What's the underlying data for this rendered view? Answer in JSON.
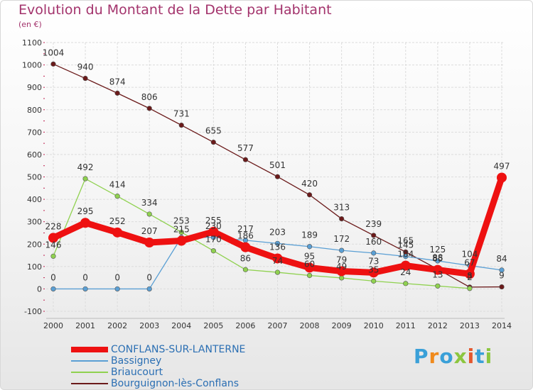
{
  "header": {
    "title": "Evolution du Montant de la Dette par Habitant",
    "unit": "(en €)"
  },
  "brand": {
    "text": "Proxiti",
    "colors": [
      "#3aa0d8",
      "#f08a1c",
      "#3aa0d8",
      "#8cc63f",
      "#e4572e",
      "#3aa0d8",
      "#8cc63f"
    ]
  },
  "chart_data": {
    "type": "line",
    "x": [
      "2000",
      "2001",
      "2002",
      "2003",
      "2004",
      "2005",
      "2006",
      "2007",
      "2008",
      "2009",
      "2010",
      "2011",
      "2012",
      "2013",
      "2014"
    ],
    "ylim": [
      -100,
      1100
    ],
    "yticks": [
      -100,
      0,
      100,
      200,
      300,
      400,
      500,
      600,
      700,
      800,
      900,
      1000,
      1100
    ],
    "grid": true,
    "legend_position": "bottom-left",
    "series": [
      {
        "name": "CONFLANS-SUR-LANTERNE",
        "color": "#ee1111",
        "values": [
          228,
          295,
          252,
          207,
          215,
          255,
          186,
          136,
          95,
          79,
          73,
          104,
          85,
          67,
          497
        ],
        "labels": [
          "228",
          "295",
          "252",
          "207",
          "215",
          "255",
          "186",
          "136",
          "95",
          "79",
          "73",
          "104",
          "85",
          "67",
          "497"
        ]
      },
      {
        "name": "Bassigney",
        "color": "#5a9fd4",
        "values": [
          0,
          0,
          0,
          0,
          230,
          230,
          217,
          203,
          189,
          172,
          160,
          145,
          125,
          104,
          84
        ],
        "labels": [
          "0",
          "0",
          "0",
          "0",
          "",
          "230",
          "217",
          "203",
          "189",
          "172",
          "160",
          "145",
          "125",
          "104",
          "84"
        ]
      },
      {
        "name": "Briaucourt",
        "color": "#8fd14f",
        "values": [
          146,
          492,
          414,
          334,
          253,
          170,
          86,
          74,
          60,
          49,
          35,
          24,
          13,
          2,
          null
        ],
        "labels": [
          "146",
          "492",
          "414",
          "334",
          "253",
          "170",
          "86",
          "74",
          "60",
          "49",
          "35",
          "24",
          "13",
          "2",
          ""
        ]
      },
      {
        "name": "Bourguignon-lès-Conflans",
        "color": "#6b1a1a",
        "values": [
          1004,
          940,
          874,
          806,
          731,
          655,
          577,
          501,
          420,
          313,
          239,
          165,
          88,
          8,
          9
        ],
        "labels": [
          "1004",
          "940",
          "874",
          "806",
          "731",
          "655",
          "577",
          "501",
          "420",
          "313",
          "239",
          "165",
          "88",
          "8",
          "9"
        ]
      }
    ]
  }
}
